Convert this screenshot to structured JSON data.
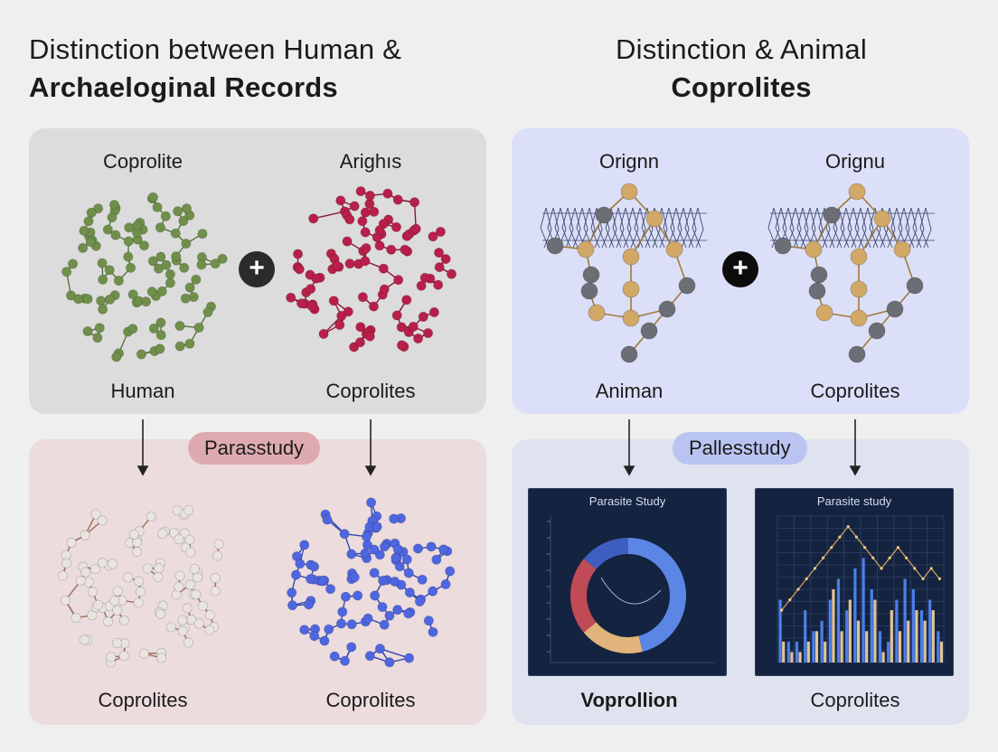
{
  "titles": {
    "left_line1": "Distinction between Human &",
    "left_line2": "Archaeloginal Records",
    "right_line1": "Distinction & Animal",
    "right_line2": "Coprolites"
  },
  "panel_top_left": {
    "label_tl": "Coprolite",
    "label_tr": "Arighıs",
    "label_bl": "Human",
    "label_br": "Coprolites",
    "plus": "+"
  },
  "panel_top_right": {
    "label_tl": "Orignn",
    "label_tr": "Orignu",
    "label_bl": "Animan",
    "label_br": "Coprolites",
    "plus": "+"
  },
  "panel_bottom_left": {
    "pill": "Parasstudy",
    "label_bl": "Coprolites",
    "label_br": "Coprolites"
  },
  "panel_bottom_right": {
    "pill": "Pallesstudy",
    "label_bl": "Voprollion",
    "label_br": "Coprolites",
    "chart_left_title": "Parasite Study",
    "chart_right_title": "Parasite study"
  },
  "colors": {
    "molecule_green": "#6f8f4a",
    "molecule_crimson": "#b81f4a",
    "molecule_white": "#e9e4df",
    "molecule_blue": "#4e66e0",
    "atom_gold": "#d2a866",
    "atom_gray": "#6b6f75"
  },
  "chart_data": [
    {
      "type": "pie",
      "title": "Parasite Study",
      "slices": [
        {
          "value": 46,
          "color": "#5b86e6"
        },
        {
          "value": 18,
          "color": "#e0b47a"
        },
        {
          "value": 22,
          "color": "#c04a55"
        },
        {
          "value": 14,
          "color": "#3f5fc0"
        }
      ]
    },
    {
      "type": "bar",
      "title": "Parasite study",
      "series": [
        {
          "values": [
            6,
            2,
            2,
            5,
            3,
            4,
            6,
            8,
            5,
            9,
            10,
            7,
            3,
            2,
            6,
            8,
            7,
            5,
            6,
            3
          ],
          "color": "#4c7fe8"
        },
        {
          "values": [
            2,
            1,
            1,
            2,
            3,
            2,
            7,
            3,
            6,
            4,
            3,
            6,
            1,
            5,
            3,
            4,
            5,
            4,
            5,
            2
          ],
          "color": "#e0c49a"
        }
      ],
      "line": [
        5,
        6,
        7,
        8,
        9,
        10,
        11,
        12,
        13,
        12,
        11,
        10,
        9,
        10,
        11,
        10,
        9,
        8,
        9,
        8
      ],
      "ylim": [
        0,
        14
      ]
    }
  ]
}
